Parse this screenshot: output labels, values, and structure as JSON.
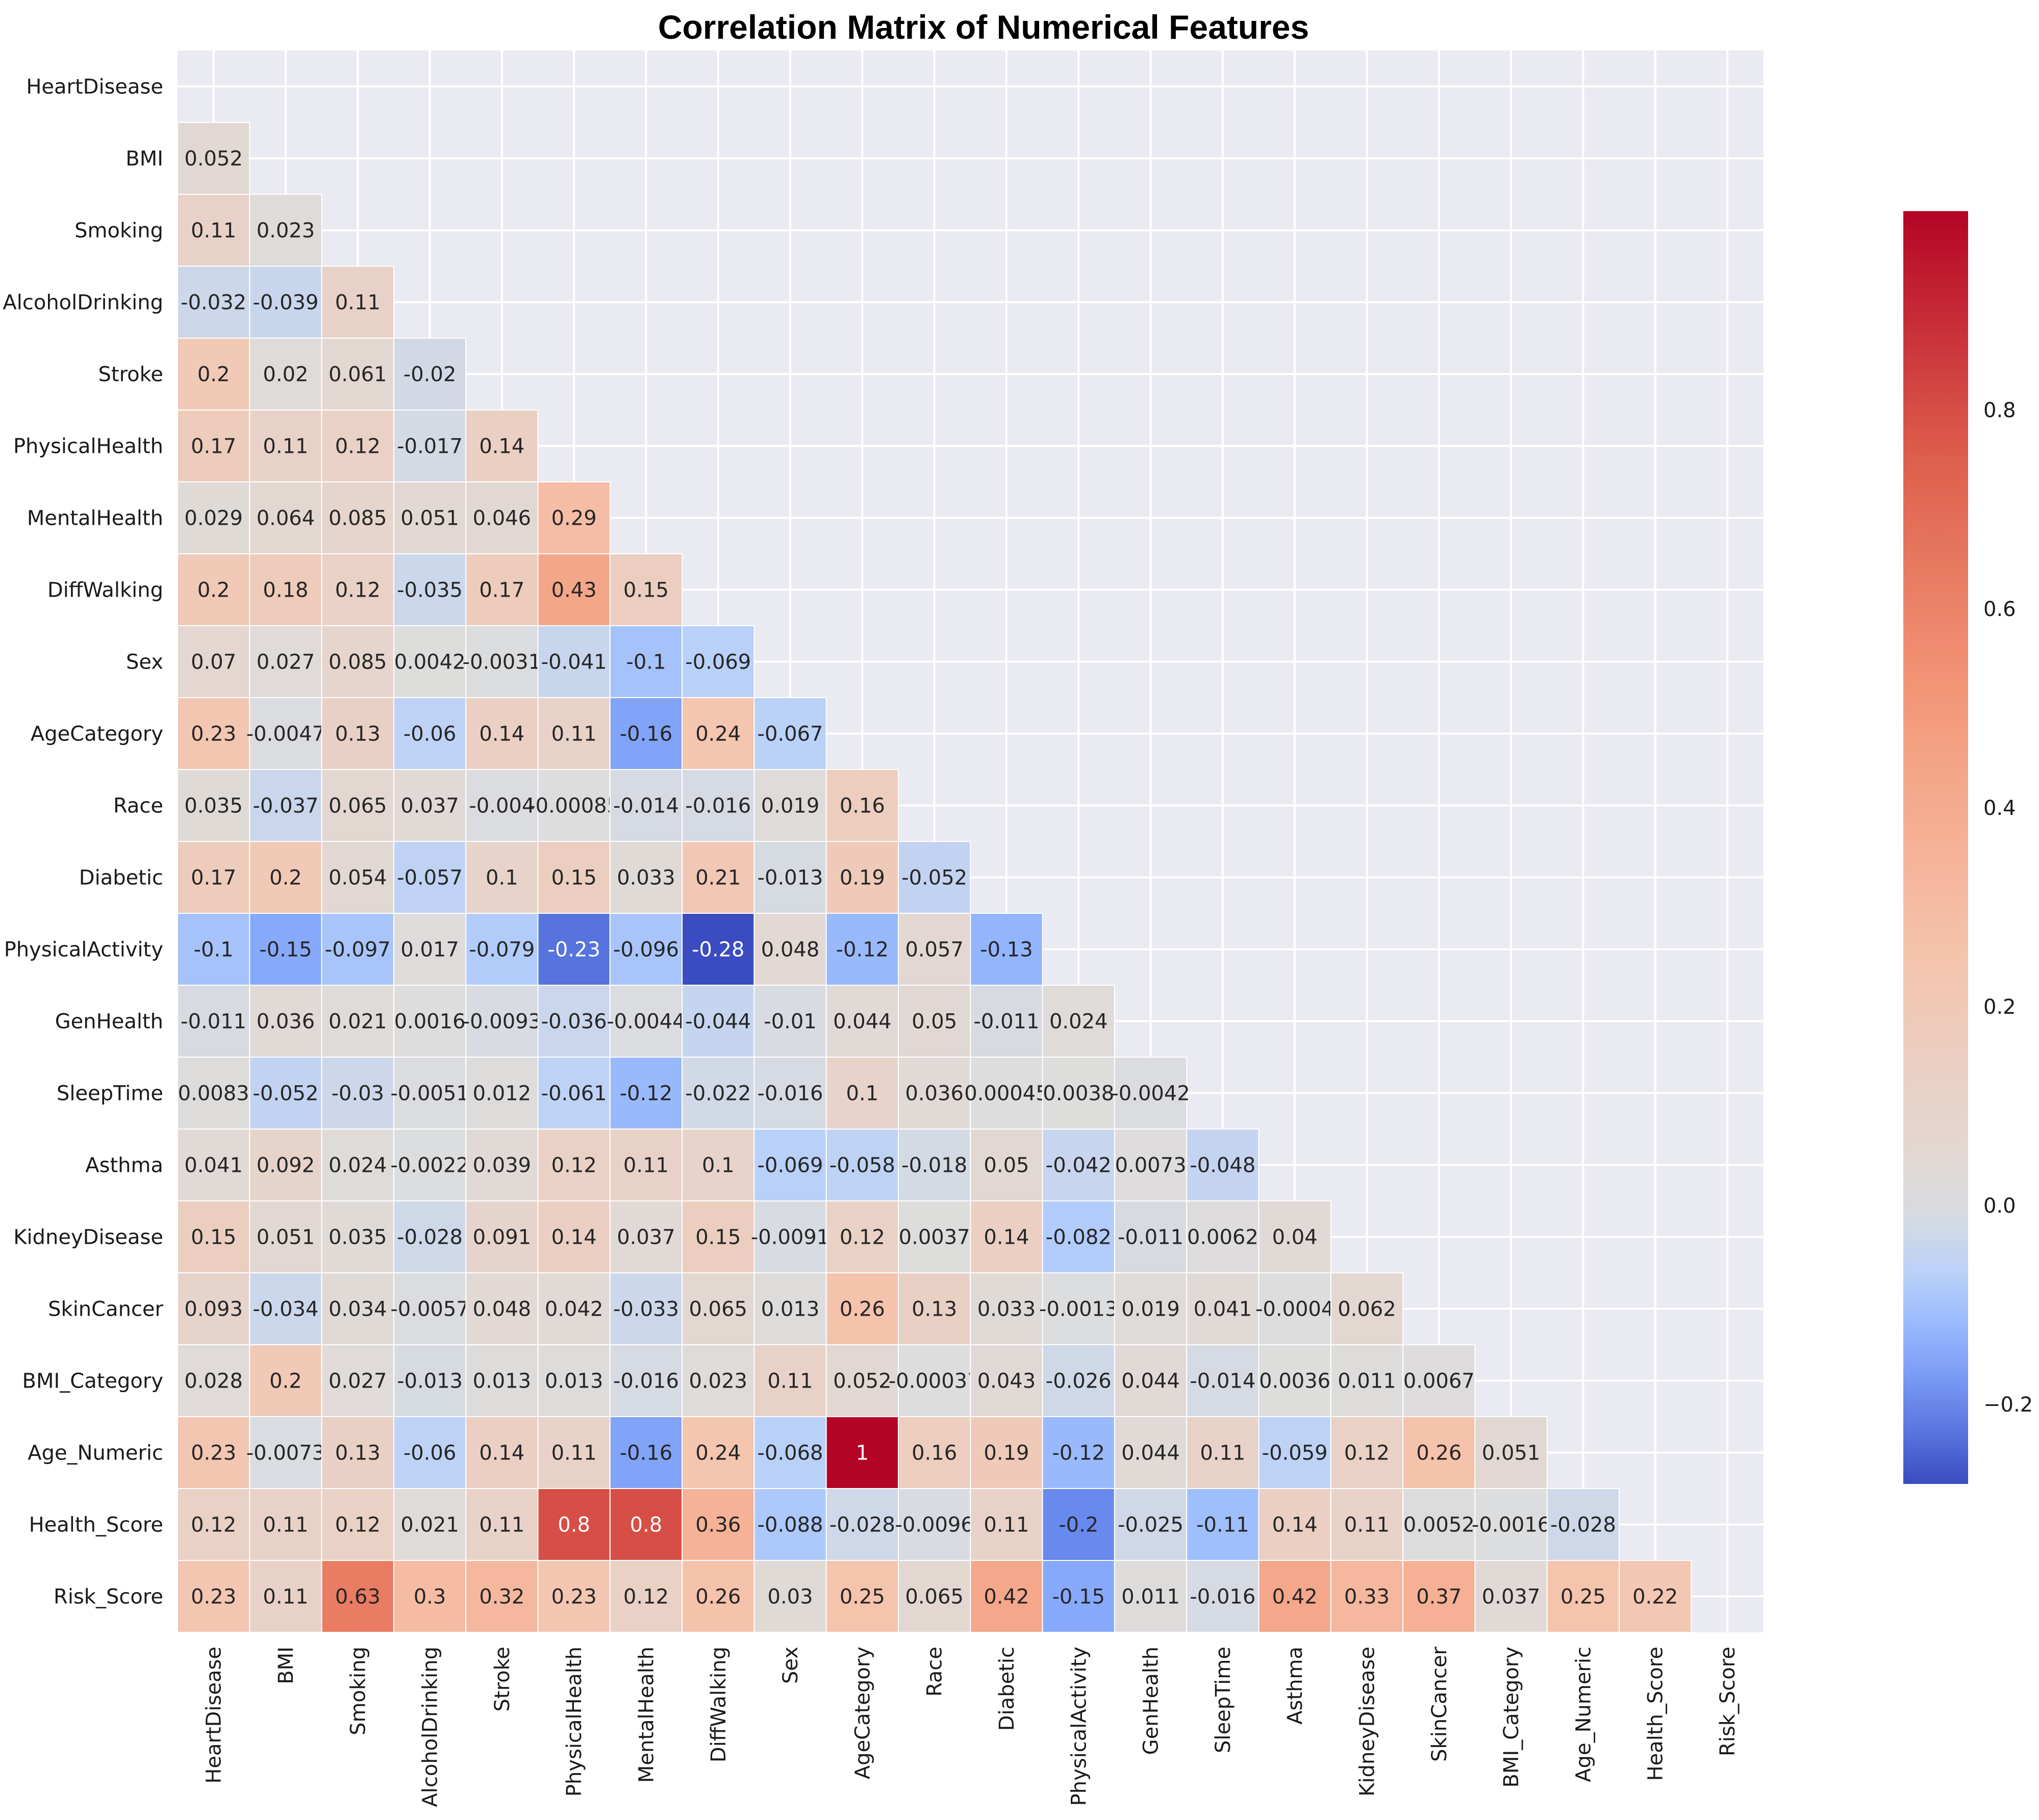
{
  "chart_data": {
    "type": "heatmap",
    "title": "Correlation Matrix of Numerical Features",
    "labels": [
      "HeartDisease",
      "BMI",
      "Smoking",
      "AlcoholDrinking",
      "Stroke",
      "PhysicalHealth",
      "MentalHealth",
      "DiffWalking",
      "Sex",
      "AgeCategory",
      "Race",
      "Diabetic",
      "PhysicalActivity",
      "GenHealth",
      "SleepTime",
      "Asthma",
      "KidneyDisease",
      "SkinCancer",
      "BMI_Category",
      "Age_Numeric",
      "Health_Score",
      "Risk_Score"
    ],
    "mask": "upper-triangle-and-diagonal",
    "values": [
      [],
      [
        "0.052"
      ],
      [
        "0.11",
        "0.023"
      ],
      [
        "-0.032",
        "-0.039",
        "0.11"
      ],
      [
        "0.2",
        "0.02",
        "0.061",
        "-0.02"
      ],
      [
        "0.17",
        "0.11",
        "0.12",
        "-0.017",
        "0.14"
      ],
      [
        "0.029",
        "0.064",
        "0.085",
        "0.051",
        "0.046",
        "0.29"
      ],
      [
        "0.2",
        "0.18",
        "0.12",
        "-0.035",
        "0.17",
        "0.43",
        "0.15"
      ],
      [
        "0.07",
        "0.027",
        "0.085",
        "0.0042",
        "-0.0031",
        "-0.041",
        "-0.1",
        "-0.069"
      ],
      [
        "0.23",
        "-0.0047",
        "0.13",
        "-0.06",
        "0.14",
        "0.11",
        "-0.16",
        "0.24",
        "-0.067"
      ],
      [
        "0.035",
        "-0.037",
        "0.065",
        "0.037",
        "-0.004",
        "-0.00085",
        "-0.014",
        "-0.016",
        "0.019",
        "0.16"
      ],
      [
        "0.17",
        "0.2",
        "0.054",
        "-0.057",
        "0.1",
        "0.15",
        "0.033",
        "0.21",
        "-0.013",
        "0.19",
        "-0.052"
      ],
      [
        "-0.1",
        "-0.15",
        "-0.097",
        "0.017",
        "-0.079",
        "-0.23",
        "-0.096",
        "-0.28",
        "0.048",
        "-0.12",
        "0.057",
        "-0.13"
      ],
      [
        "-0.011",
        "0.036",
        "0.021",
        "0.0016",
        "-0.0093",
        "-0.036",
        "-0.0044",
        "-0.044",
        "-0.01",
        "0.044",
        "0.05",
        "-0.011",
        "0.024"
      ],
      [
        "0.0083",
        "-0.052",
        "-0.03",
        "-0.0051",
        "0.012",
        "-0.061",
        "-0.12",
        "-0.022",
        "-0.016",
        "0.1",
        "0.036",
        "0.00045",
        "0.0038",
        "-0.0042"
      ],
      [
        "0.041",
        "0.092",
        "0.024",
        "-0.0022",
        "0.039",
        "0.12",
        "0.11",
        "0.1",
        "-0.069",
        "-0.058",
        "-0.018",
        "0.05",
        "-0.042",
        "0.0073",
        "-0.048"
      ],
      [
        "0.15",
        "0.051",
        "0.035",
        "-0.028",
        "0.091",
        "0.14",
        "0.037",
        "0.15",
        "-0.0091",
        "0.12",
        "0.0037",
        "0.14",
        "-0.082",
        "-0.011",
        "0.0062",
        "0.04"
      ],
      [
        "0.093",
        "-0.034",
        "0.034",
        "-0.0057",
        "0.048",
        "0.042",
        "-0.033",
        "0.065",
        "0.013",
        "0.26",
        "0.13",
        "0.033",
        "-0.0013",
        "0.019",
        "0.041",
        "-0.0004",
        "0.062"
      ],
      [
        "0.028",
        "0.2",
        "0.027",
        "-0.013",
        "0.013",
        "0.013",
        "-0.016",
        "0.023",
        "0.11",
        "0.052",
        "-0.00037",
        "0.043",
        "-0.026",
        "0.044",
        "-0.014",
        "0.0036",
        "0.011",
        "0.0067"
      ],
      [
        "0.23",
        "-0.0073",
        "0.13",
        "-0.06",
        "0.14",
        "0.11",
        "-0.16",
        "0.24",
        "-0.068",
        "1",
        "0.16",
        "0.19",
        "-0.12",
        "0.044",
        "0.11",
        "-0.059",
        "0.12",
        "0.26",
        "0.051"
      ],
      [
        "0.12",
        "0.11",
        "0.12",
        "0.021",
        "0.11",
        "0.8",
        "0.8",
        "0.36",
        "-0.088",
        "-0.028",
        "-0.0096",
        "0.11",
        "-0.2",
        "-0.025",
        "-0.11",
        "0.14",
        "0.11",
        "0.0052",
        "-0.0016",
        "-0.028"
      ],
      [
        "0.23",
        "0.11",
        "0.63",
        "0.3",
        "0.32",
        "0.23",
        "0.12",
        "0.26",
        "0.03",
        "0.25",
        "0.065",
        "0.42",
        "-0.15",
        "0.011",
        "-0.016",
        "0.42",
        "0.33",
        "0.37",
        "0.037",
        "0.25",
        "0.22"
      ]
    ],
    "colorbar": {
      "colormap": "coolwarm",
      "center": 0,
      "vmin": -0.28,
      "vmax": 1,
      "ticks": [
        "0.8",
        "0.6",
        "0.4",
        "0.2",
        "0.0",
        "−0.2"
      ]
    }
  }
}
